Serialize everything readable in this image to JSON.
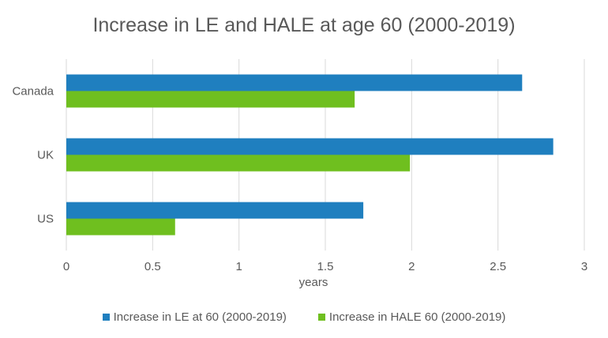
{
  "chart_data": {
    "type": "bar",
    "orientation": "horizontal",
    "title": "Increase in LE and HALE at age 60 (2000-2019)",
    "xlabel": "years",
    "ylabel": "",
    "categories": [
      "Canada",
      "UK",
      "US"
    ],
    "series": [
      {
        "name": "Increase in LE at 60 (2000-2019)",
        "color": "#1f7fbf",
        "values": [
          2.64,
          2.82,
          1.72
        ]
      },
      {
        "name": "Increase in HALE 60 (2000-2019)",
        "color": "#6fbf1f",
        "values": [
          1.67,
          1.99,
          0.63
        ]
      }
    ],
    "xlim": [
      0,
      3
    ],
    "xticks": [
      "0",
      "0.5",
      "1",
      "1.5",
      "2",
      "2.5",
      "3"
    ],
    "grid": "vertical",
    "legend": "bottom"
  }
}
